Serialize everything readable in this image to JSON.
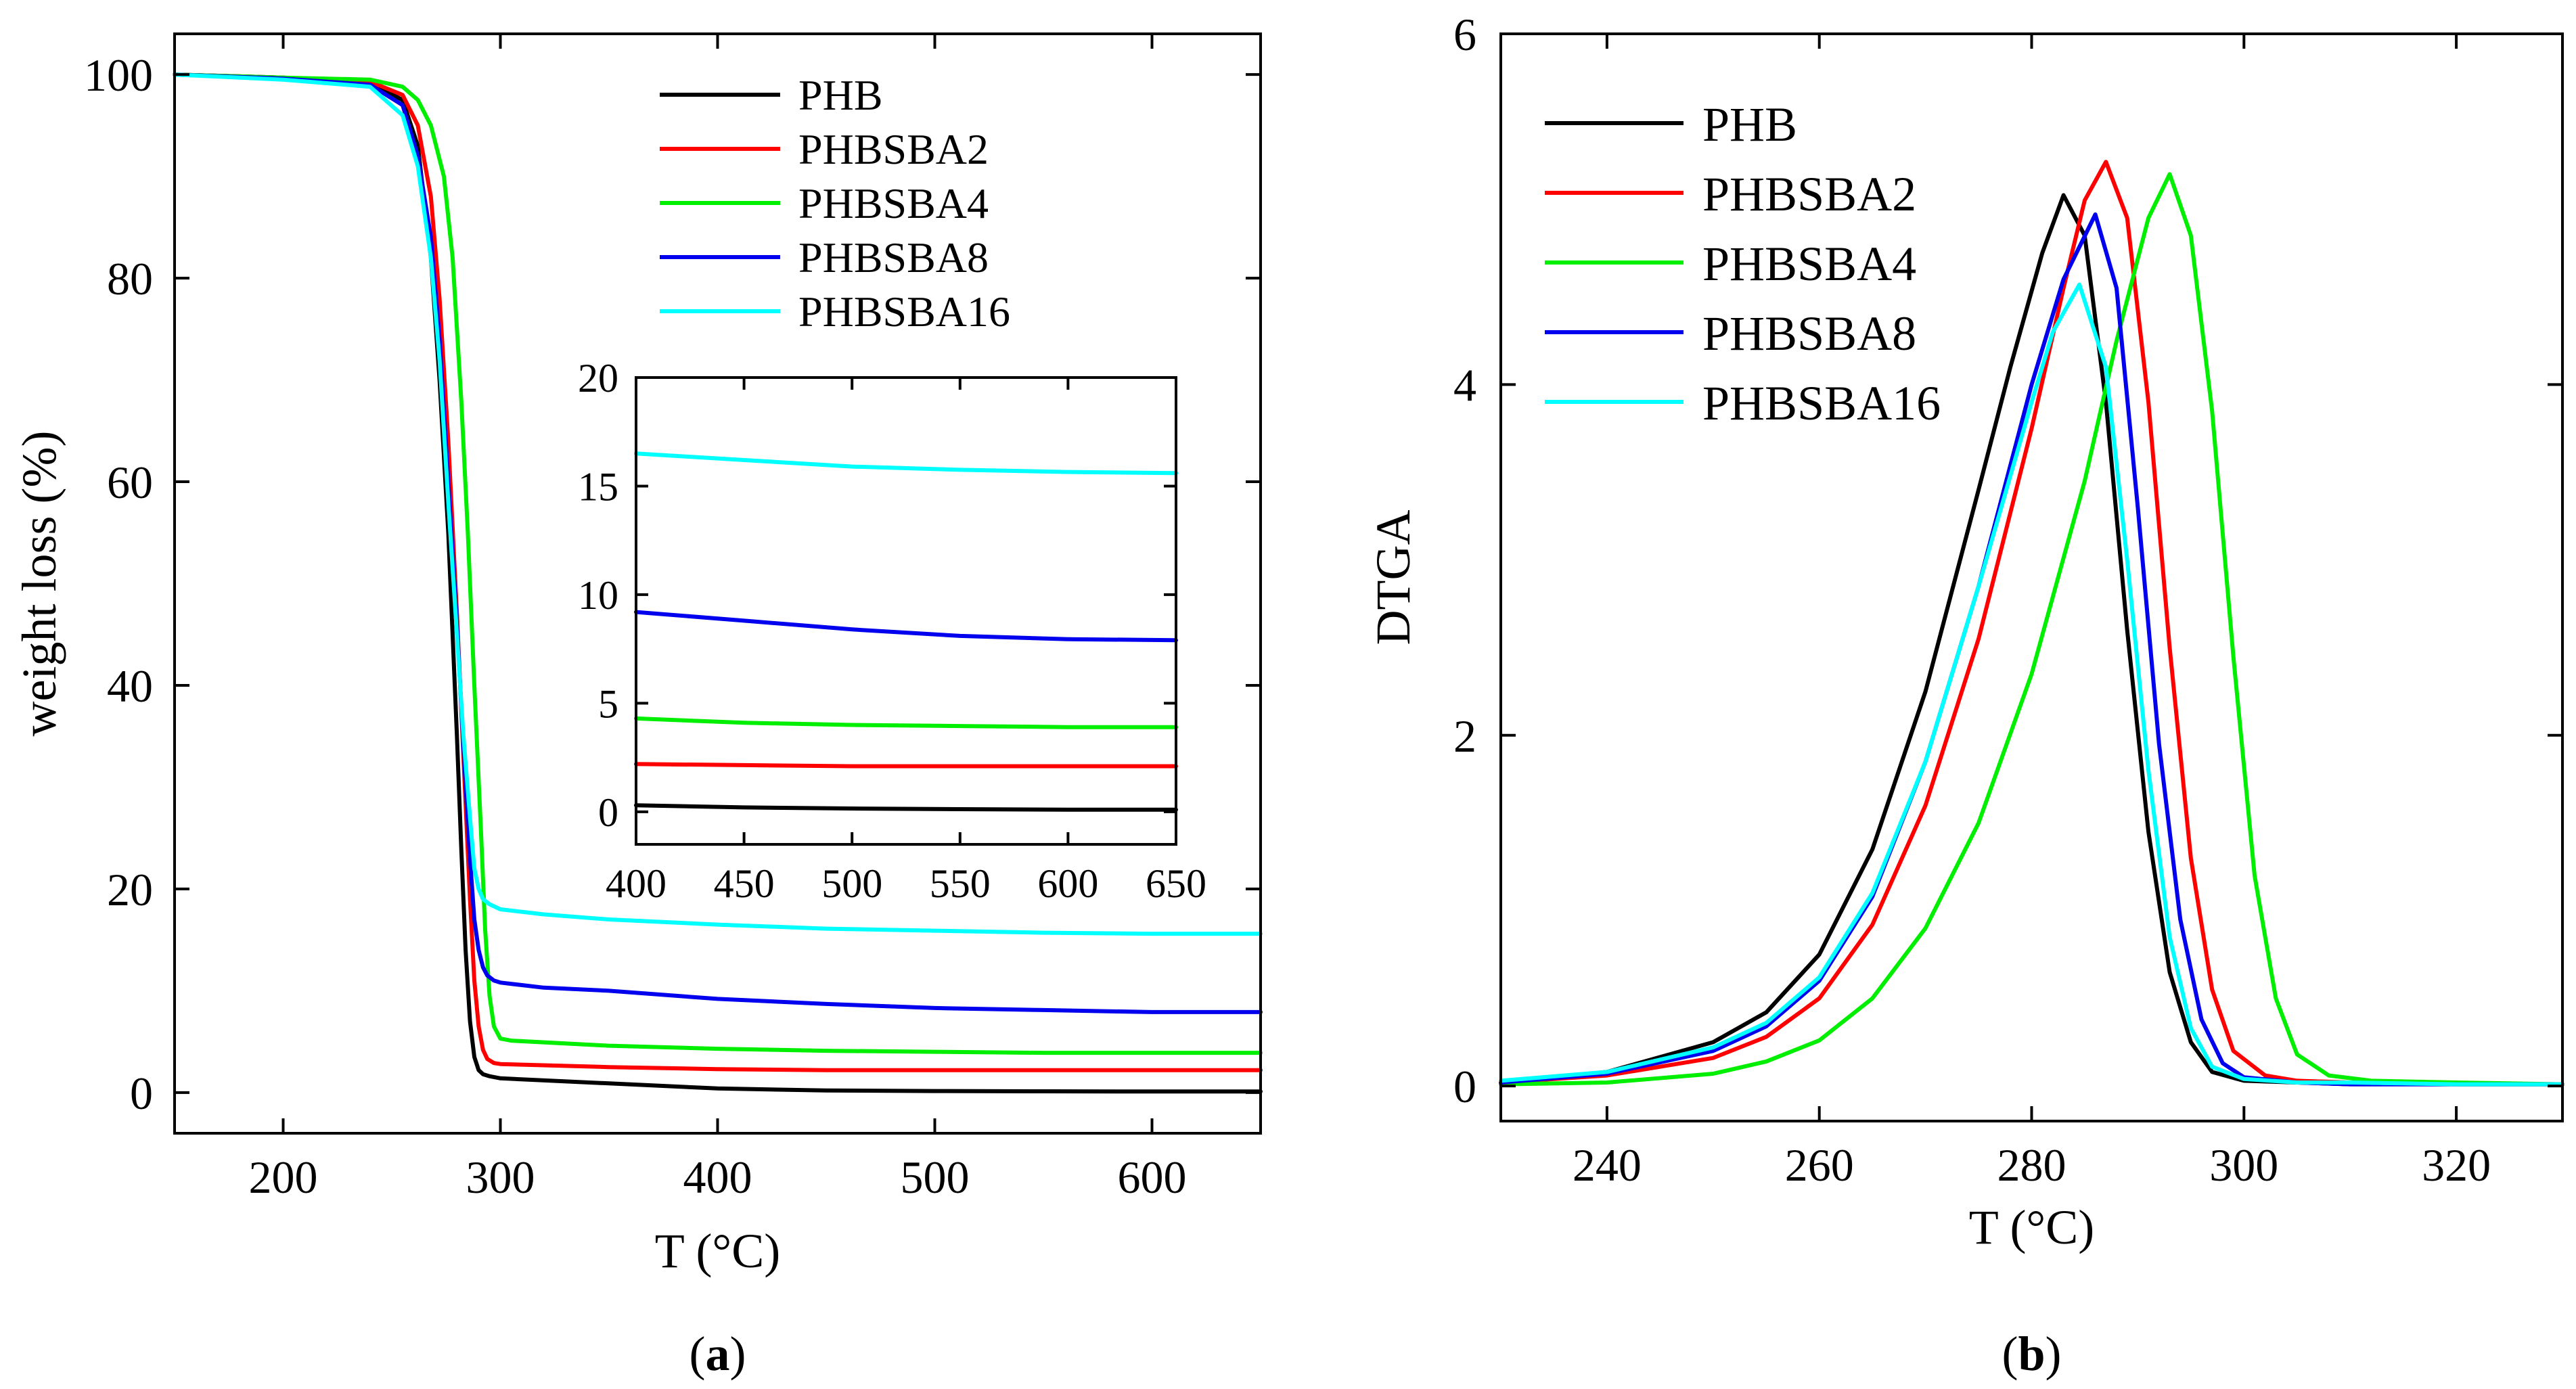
{
  "chart_data": [
    {
      "panel": "(a)",
      "type": "line",
      "xlabel": "T (°C)",
      "ylabel": "weight loss (%)",
      "xlim": [
        150,
        650
      ],
      "ylim": [
        -4,
        104
      ],
      "xticks": [
        200,
        300,
        400,
        500,
        600
      ],
      "yticks": [
        0,
        20,
        40,
        60,
        80,
        100
      ],
      "legend_position": "top-right",
      "series": [
        {
          "name": "PHB",
          "color": "#000000",
          "x": [
            150,
            200,
            240,
            255,
            262,
            268,
            272,
            276,
            278,
            280,
            282,
            284,
            286,
            288,
            290,
            292,
            295,
            300,
            350,
            400,
            450,
            500,
            550,
            600,
            650
          ],
          "y": [
            100,
            99.7,
            99.2,
            97.5,
            93,
            82,
            70,
            55,
            45,
            35,
            24,
            14,
            7,
            3.5,
            2.2,
            1.8,
            1.6,
            1.4,
            0.9,
            0.4,
            0.2,
            0.15,
            0.12,
            0.1,
            0.1
          ]
        },
        {
          "name": "PHBSBA2",
          "color": "#ff0000",
          "x": [
            150,
            200,
            240,
            255,
            262,
            268,
            272,
            276,
            280,
            283,
            286,
            288,
            290,
            292,
            294,
            297,
            300,
            350,
            400,
            450,
            500,
            550,
            600,
            650
          ],
          "y": [
            100,
            99.7,
            99.3,
            98,
            95,
            88,
            78,
            64,
            47,
            33,
            19,
            11,
            6.5,
            4.2,
            3.3,
            2.9,
            2.8,
            2.5,
            2.3,
            2.2,
            2.2,
            2.2,
            2.2,
            2.2
          ]
        },
        {
          "name": "PHBSBA4",
          "color": "#00ee00",
          "x": [
            150,
            200,
            240,
            255,
            262,
            268,
            274,
            278,
            282,
            285,
            288,
            291,
            293,
            295,
            297,
            300,
            305,
            350,
            400,
            450,
            500,
            550,
            600,
            650
          ],
          "y": [
            100,
            99.7,
            99.5,
            98.8,
            97.5,
            95,
            90,
            82,
            68,
            55,
            40,
            26,
            16,
            9.5,
            6.5,
            5.3,
            5.1,
            4.6,
            4.3,
            4.1,
            4.0,
            3.9,
            3.9,
            3.9
          ]
        },
        {
          "name": "PHBSBA8",
          "color": "#0000ee",
          "x": [
            150,
            200,
            240,
            255,
            262,
            268,
            272,
            276,
            280,
            283,
            286,
            288,
            290,
            292,
            294,
            297,
            300,
            320,
            350,
            400,
            450,
            500,
            550,
            600,
            650
          ],
          "y": [
            100,
            99.6,
            99,
            97,
            92,
            84,
            74,
            60,
            46,
            34,
            23,
            17,
            14,
            12.3,
            11.5,
            11,
            10.8,
            10.3,
            10,
            9.2,
            8.7,
            8.3,
            8.1,
            7.9,
            7.9
          ]
        },
        {
          "name": "PHBSBA16",
          "color": "#00ffff",
          "x": [
            150,
            200,
            240,
            255,
            262,
            268,
            272,
            276,
            280,
            283,
            286,
            288,
            290,
            292,
            295,
            300,
            320,
            350,
            400,
            450,
            500,
            550,
            600,
            650
          ],
          "y": [
            100,
            99.5,
            98.8,
            96,
            91,
            82,
            72,
            58,
            45,
            35,
            27,
            22,
            20,
            19,
            18.5,
            18,
            17.5,
            17,
            16.5,
            16.1,
            15.9,
            15.7,
            15.6,
            15.6
          ]
        }
      ],
      "inset": {
        "xlim": [
          400,
          650
        ],
        "ylim": [
          -1.5,
          20
        ],
        "xticks": [
          400,
          450,
          500,
          550,
          600,
          650
        ],
        "yticks": [
          0,
          5,
          10,
          15,
          20
        ],
        "series": [
          {
            "name": "PHB",
            "color": "#000000",
            "x": [
              400,
              450,
              500,
              550,
              600,
              650
            ],
            "y": [
              0.3,
              0.2,
              0.15,
              0.12,
              0.1,
              0.1
            ]
          },
          {
            "name": "PHBSBA2",
            "color": "#ff0000",
            "x": [
              400,
              450,
              500,
              550,
              600,
              650
            ],
            "y": [
              2.2,
              2.15,
              2.1,
              2.1,
              2.1,
              2.1
            ]
          },
          {
            "name": "PHBSBA4",
            "color": "#00ee00",
            "x": [
              400,
              450,
              500,
              550,
              600,
              650
            ],
            "y": [
              4.3,
              4.1,
              4.0,
              3.95,
              3.9,
              3.9
            ]
          },
          {
            "name": "PHBSBA8",
            "color": "#0000ee",
            "x": [
              400,
              450,
              500,
              550,
              600,
              650
            ],
            "y": [
              9.2,
              8.8,
              8.4,
              8.1,
              7.95,
              7.9
            ]
          },
          {
            "name": "PHBSBA16",
            "color": "#00ffff",
            "x": [
              400,
              450,
              500,
              550,
              600,
              650
            ],
            "y": [
              16.5,
              16.2,
              15.9,
              15.75,
              15.65,
              15.6
            ]
          }
        ]
      }
    },
    {
      "panel": "(b)",
      "type": "line",
      "xlabel": "T (°C)",
      "ylabel": "DTGA",
      "xlim": [
        230,
        330
      ],
      "ylim": [
        -0.2,
        6
      ],
      "xticks": [
        240,
        260,
        280,
        300,
        320
      ],
      "yticks": [
        0,
        2,
        4,
        6
      ],
      "legend_position": "top-left",
      "series": [
        {
          "name": "PHB",
          "color": "#000000",
          "x": [
            230,
            240,
            250,
            255,
            260,
            265,
            270,
            275,
            278,
            281,
            283,
            285,
            287,
            289,
            291,
            293,
            295,
            297,
            300,
            305,
            310,
            320,
            330
          ],
          "y": [
            0.02,
            0.08,
            0.25,
            0.42,
            0.75,
            1.35,
            2.25,
            3.4,
            4.1,
            4.75,
            5.08,
            4.85,
            3.9,
            2.6,
            1.45,
            0.65,
            0.25,
            0.08,
            0.03,
            0.02,
            0.01,
            0.01,
            0.01
          ]
        },
        {
          "name": "PHBSBA2",
          "color": "#ff0000",
          "x": [
            230,
            240,
            250,
            255,
            260,
            265,
            270,
            275,
            280,
            283,
            285,
            287,
            289,
            291,
            293,
            295,
            297,
            299,
            302,
            305,
            310,
            320,
            330
          ],
          "y": [
            0.02,
            0.06,
            0.16,
            0.28,
            0.5,
            0.92,
            1.6,
            2.55,
            3.75,
            4.55,
            5.05,
            5.27,
            4.95,
            3.9,
            2.5,
            1.3,
            0.55,
            0.2,
            0.06,
            0.03,
            0.02,
            0.01,
            0.01
          ]
        },
        {
          "name": "PHBSBA4",
          "color": "#00ee00",
          "x": [
            230,
            240,
            250,
            255,
            260,
            265,
            270,
            275,
            280,
            285,
            288,
            291,
            293,
            295,
            297,
            299,
            301,
            303,
            305,
            308,
            312,
            320,
            330
          ],
          "y": [
            0.01,
            0.02,
            0.07,
            0.14,
            0.26,
            0.5,
            0.9,
            1.5,
            2.35,
            3.45,
            4.25,
            4.95,
            5.2,
            4.85,
            3.85,
            2.45,
            1.2,
            0.5,
            0.18,
            0.06,
            0.03,
            0.02,
            0.01
          ]
        },
        {
          "name": "PHBSBA8",
          "color": "#0000ee",
          "x": [
            230,
            240,
            250,
            255,
            260,
            265,
            270,
            275,
            280,
            283,
            286,
            288,
            290,
            292,
            294,
            296,
            298,
            300,
            305,
            310,
            320,
            330
          ],
          "y": [
            0.02,
            0.07,
            0.2,
            0.34,
            0.6,
            1.08,
            1.85,
            2.85,
            4.0,
            4.6,
            4.97,
            4.55,
            3.3,
            1.95,
            0.95,
            0.38,
            0.13,
            0.05,
            0.02,
            0.01,
            0.01,
            0.01
          ]
        },
        {
          "name": "PHBSBA16",
          "color": "#00ffff",
          "x": [
            230,
            240,
            250,
            255,
            260,
            265,
            270,
            275,
            280,
            282,
            284.5,
            287,
            289,
            291,
            293,
            295,
            297,
            300,
            305,
            310,
            320,
            330
          ],
          "y": [
            0.03,
            0.08,
            0.22,
            0.36,
            0.62,
            1.1,
            1.85,
            2.85,
            3.9,
            4.3,
            4.57,
            4.1,
            3.0,
            1.8,
            0.85,
            0.33,
            0.11,
            0.04,
            0.02,
            0.02,
            0.01,
            0.01
          ]
        }
      ]
    }
  ]
}
